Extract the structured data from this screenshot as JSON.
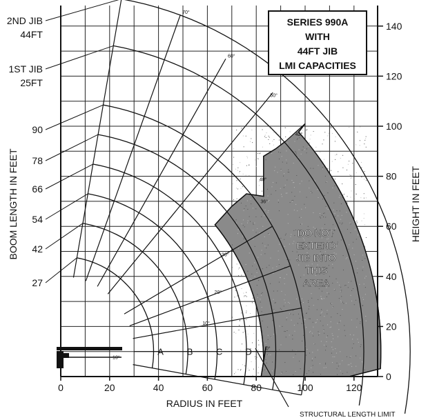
{
  "title_lines": [
    "SERIES 990A",
    "WITH",
    "44FT JIB",
    "LMI CAPACITIES"
  ],
  "x_axis_label": "RADIUS IN FEET",
  "y_left_label": "BOOM LENGTH IN FEET",
  "y_right_label": "HEIGHT IN FEET",
  "x_ticks": [
    "0",
    "20",
    "40",
    "60",
    "80",
    "100",
    "120"
  ],
  "y_right_ticks": [
    "0",
    "20",
    "40",
    "60",
    "80",
    "100",
    "120",
    "140"
  ],
  "boom_labels": [
    {
      "line1": "2ND JIB",
      "line2": "44FT",
      "length": 143
    },
    {
      "line1": "1ST JIB",
      "line2": "25FT",
      "length": 124
    },
    {
      "line1": "90",
      "line2": "",
      "length": 100
    },
    {
      "line1": "78",
      "line2": "",
      "length": 88
    },
    {
      "line1": "66",
      "line2": "",
      "length": 76
    },
    {
      "line1": "54",
      "line2": "",
      "length": 64
    },
    {
      "line1": "42",
      "line2": "",
      "length": 52
    },
    {
      "line1": "27",
      "line2": "",
      "length": 38
    }
  ],
  "angle_labels": [
    "80°",
    "70°",
    "60°",
    "50°",
    "42°",
    "40°",
    "36°",
    "30°",
    "20°",
    "10°",
    "0°",
    "-10°"
  ],
  "zone_letters": [
    "A",
    "B",
    "C",
    "D"
  ],
  "restricted_area_text": [
    "DO NOT",
    "EXTEND",
    "JIB INTO",
    "THIS",
    "AREA"
  ],
  "callout": "STRUCTURAL LENGTH LIMIT",
  "chart_data": {
    "type": "diagram",
    "x_range": [
      0,
      130
    ],
    "y_range": [
      0,
      150
    ],
    "grid": true,
    "boom_angles_deg": [
      80,
      70,
      60,
      50,
      42,
      40,
      36,
      30,
      20,
      10,
      0,
      -10
    ]
  }
}
